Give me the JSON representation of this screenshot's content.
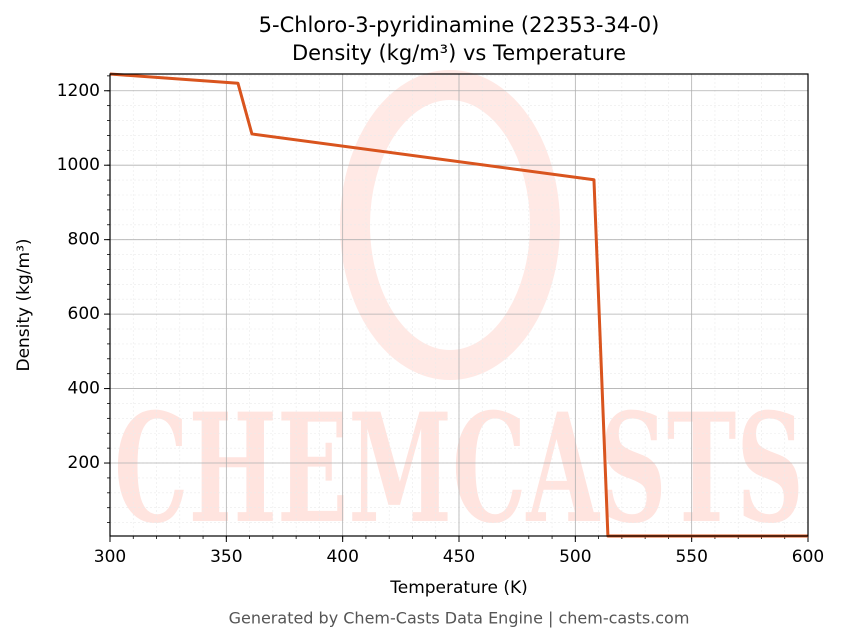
{
  "chart_data": {
    "type": "line",
    "title": "5-Chloro-3-pyridinamine (22353-34-0)",
    "subtitle": "Density (kg/m³) vs Temperature",
    "x_label": "Temperature (K)",
    "y_label": "Density (kg/m³)",
    "footer": "Generated by Chem-Casts Data Engine | chem-casts.com",
    "watermark": "CHEMCASTS",
    "x": [
      300,
      355,
      361,
      508,
      514,
      600
    ],
    "series": [
      {
        "name": "Density",
        "color": "#d9541e",
        "values": [
          1245,
          1220,
          1084,
          961,
          4,
          4
        ]
      }
    ],
    "xlim": [
      300,
      600
    ],
    "xticks": [
      300,
      350,
      400,
      450,
      500,
      550,
      600
    ],
    "ylim": [
      4,
      1245
    ],
    "yticks": [
      200,
      400,
      600,
      800,
      1000,
      1200
    ],
    "grid": true,
    "minor_divisions": 5
  }
}
